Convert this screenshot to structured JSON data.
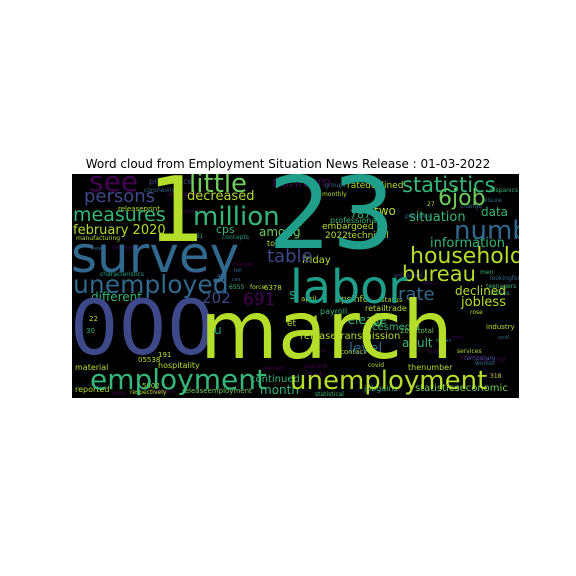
{
  "title": "Word cloud from Employment Situation News Release : 01-03-2022",
  "palette": {
    "background": "#000000",
    "lime": "#b5de2b",
    "green": "#6ece58",
    "mint": "#35b779",
    "teal": "#1f9e89",
    "blue": "#31688e",
    "indigo": "#3e4989",
    "violet": "#482878",
    "deep": "#440154"
  },
  "words": [
    {
      "text": "march"
    },
    {
      "text": "000"
    },
    {
      "text": "23"
    },
    {
      "text": "1"
    },
    {
      "text": "survey"
    },
    {
      "text": "labor"
    },
    {
      "text": "unemployment"
    },
    {
      "text": "employment"
    },
    {
      "text": "unemployed"
    },
    {
      "text": "million"
    },
    {
      "text": "little"
    },
    {
      "text": "see"
    },
    {
      "text": "number"
    },
    {
      "text": "statistics"
    },
    {
      "text": "household"
    },
    {
      "text": "bureau"
    },
    {
      "text": "measures"
    },
    {
      "text": "persons"
    },
    {
      "text": "6job"
    },
    {
      "text": "table"
    },
    {
      "text": "rate"
    },
    {
      "text": "202"
    },
    {
      "text": "691"
    },
    {
      "text": "february 2020"
    },
    {
      "text": "decreased"
    },
    {
      "text": "declined"
    },
    {
      "text": "jobless"
    },
    {
      "text": "different"
    },
    {
      "text": "information"
    },
    {
      "text": "data"
    },
    {
      "text": "situation"
    },
    {
      "text": "two"
    },
    {
      "text": "787"
    },
    {
      "text": "among"
    },
    {
      "text": "cps"
    },
    {
      "text": "release"
    },
    {
      "text": "level"
    },
    {
      "text": "adult"
    },
    {
      "text": "month"
    },
    {
      "text": "continued"
    },
    {
      "text": "friday"
    },
    {
      "text": "nonfarm"
    },
    {
      "text": "embargoed"
    },
    {
      "text": "today"
    },
    {
      "text": "2022technical"
    },
    {
      "text": "ratedeclined"
    },
    {
      "text": "professional"
    },
    {
      "text": "releasetransmission"
    },
    {
      "text": "cpsinfo"
    },
    {
      "text": "retailtrade"
    },
    {
      "text": "cesmedia"
    },
    {
      "text": "statisticseconomic"
    },
    {
      "text": "jobgains"
    },
    {
      "text": "releaseemployment"
    },
    {
      "text": "hospitality"
    },
    {
      "text": "material"
    },
    {
      "text": "reported"
    },
    {
      "text": "respectively"
    },
    {
      "text": "releaseprint"
    },
    {
      "text": "pressoffice"
    },
    {
      "text": "concepts"
    },
    {
      "text": "notable"
    },
    {
      "text": "cesinfo"
    },
    {
      "text": "characteristics"
    },
    {
      "text": "manufacturing"
    },
    {
      "text": "statistical"
    },
    {
      "text": "thenumber"
    },
    {
      "text": "2022total"
    },
    {
      "text": "industry"
    },
    {
      "text": "rose"
    },
    {
      "text": "payroll"
    },
    {
      "text": "contact"
    },
    {
      "text": "covid"
    },
    {
      "text": "status"
    },
    {
      "text": "april"
    },
    {
      "text": "pandemic"
    },
    {
      "text": "monthly"
    },
    {
      "text": "force"
    },
    {
      "text": "6378"
    },
    {
      "text": "6555"
    },
    {
      "text": "5902"
    },
    {
      "text": "05538"
    },
    {
      "text": "431"
    },
    {
      "text": "30"
    },
    {
      "text": "22"
    },
    {
      "text": "191"
    },
    {
      "text": "27"
    },
    {
      "text": "318"
    },
    {
      "text": "4"
    },
    {
      "text": "0"
    },
    {
      "text": "et"
    },
    {
      "text": "u"
    },
    {
      "text": "s"
    },
    {
      "text": "services"
    },
    {
      "text": "losers"
    },
    {
      "text": "business"
    },
    {
      "text": "worker"
    },
    {
      "text": "note"
    },
    {
      "text": "earnings"
    },
    {
      "text": "temporary"
    },
    {
      "text": "hispanics"
    },
    {
      "text": "leisure"
    },
    {
      "text": "lookingfor"
    },
    {
      "text": "men"
    },
    {
      "text": "teenagers"
    },
    {
      "text": "values"
    },
    {
      "text": "change"
    },
    {
      "text": "previous"
    },
    {
      "text": "groups"
    },
    {
      "text": "thatis"
    },
    {
      "text": "permanent"
    },
    {
      "text": "including"
    },
    {
      "text": "coronavirus"
    },
    {
      "text": "economic"
    },
    {
      "text": "women"
    },
    {
      "text": "percent"
    },
    {
      "text": "blacks"
    },
    {
      "text": "asians"
    },
    {
      "text": "whites"
    },
    {
      "text": "changed"
    },
    {
      "text": "fell"
    },
    {
      "text": "quit"
    },
    {
      "text": "began"
    },
    {
      "text": "ces"
    },
    {
      "text": "new"
    },
    {
      "text": "rpse"
    },
    {
      "text": "undl"
    },
    {
      "text": "demographic"
    },
    {
      "text": "unchanged"
    },
    {
      "text": "returned"
    },
    {
      "text": "recent"
    }
  ]
}
